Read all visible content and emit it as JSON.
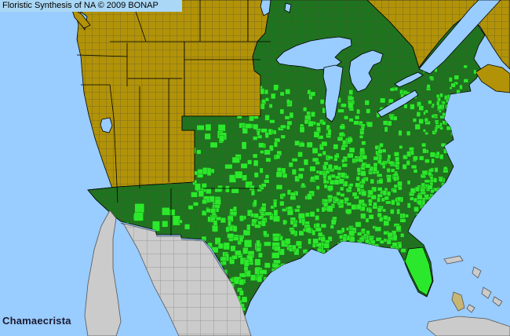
{
  "header": {
    "title": "Floristic Synthesis of NA © 2009 BONAP"
  },
  "footer": {
    "taxon_label": "Chamaecrista"
  },
  "colors": {
    "water": "#99CCFF",
    "land_absent": "#B29308",
    "land_present_state": "#1E741E",
    "county_present": "#2CE82C",
    "foreign_land": "#CBCBCB",
    "island_tan": "#C7B573",
    "title_bg": "#A9D7F5",
    "title_text": "#000000",
    "label_text": "#1A1A30"
  },
  "map": {
    "seed": 123457,
    "speckle_clusters": [
      [
        295,
        105,
        80,
        50,
        35,
        4,
        8
      ],
      [
        385,
        113,
        90,
        50,
        28,
        4,
        8
      ],
      [
        320,
        152,
        150,
        125,
        160,
        4,
        8
      ],
      [
        242,
        150,
        85,
        135,
        60,
        5,
        10
      ],
      [
        262,
        262,
        155,
        45,
        60,
        4,
        9
      ],
      [
        250,
        295,
        135,
        70,
        85,
        5,
        10
      ],
      [
        278,
        355,
        45,
        42,
        20,
        4,
        8
      ],
      [
        368,
        275,
        150,
        68,
        90,
        4,
        8
      ],
      [
        408,
        195,
        105,
        78,
        80,
        4,
        7
      ],
      [
        458,
        182,
        115,
        100,
        130,
        4,
        7
      ],
      [
        478,
        112,
        100,
        62,
        45,
        4,
        7
      ],
      [
        538,
        80,
        72,
        95,
        45,
        3,
        6
      ],
      [
        428,
        293,
        88,
        26,
        22,
        4,
        7
      ],
      [
        150,
        258,
        80,
        40,
        9,
        7,
        13
      ],
      [
        225,
        248,
        60,
        45,
        10,
        4,
        7
      ],
      [
        490,
        100,
        48,
        34,
        6,
        4,
        7
      ],
      [
        430,
        140,
        48,
        38,
        10,
        4,
        7
      ],
      [
        530,
        210,
        42,
        58,
        35,
        4,
        7
      ],
      [
        560,
        120,
        40,
        60,
        25,
        3,
        6
      ],
      [
        388,
        300,
        60,
        34,
        20,
        4,
        8
      ]
    ]
  }
}
